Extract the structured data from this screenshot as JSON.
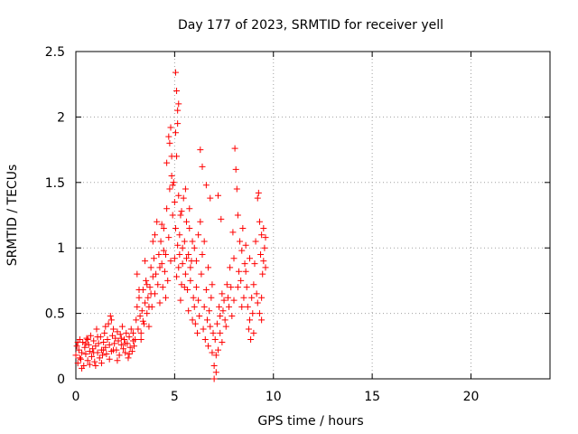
{
  "chart_data": {
    "type": "scatter",
    "title": "Day 177 of 2023, SRMTID for receiver yell",
    "xlabel": "GPS time / hours",
    "ylabel": "SRMTID / TECUs",
    "xlim": [
      0,
      24
    ],
    "ylim": [
      0,
      2.5
    ],
    "x_ticks": [
      0,
      5,
      10,
      15,
      20
    ],
    "x_tick_labels": [
      "0",
      "5",
      "10",
      "15",
      "20"
    ],
    "y_ticks": [
      0,
      0.5,
      1,
      1.5,
      2,
      2.5
    ],
    "y_tick_labels": [
      "0",
      "0.5",
      "1",
      "1.5",
      "2",
      "2.5"
    ],
    "grid": true,
    "marker": "+",
    "series": [
      {
        "name": "SRMTID",
        "color": "#ff0000",
        "points": [
          [
            0.0,
            0.18
          ],
          [
            0.05,
            0.25
          ],
          [
            0.1,
            0.12
          ],
          [
            0.15,
            0.22
          ],
          [
            0.2,
            0.3
          ],
          [
            0.25,
            0.15
          ],
          [
            0.3,
            0.2
          ],
          [
            0.35,
            0.28
          ],
          [
            0.4,
            0.1
          ],
          [
            0.45,
            0.24
          ],
          [
            0.5,
            0.19
          ],
          [
            0.55,
            0.31
          ],
          [
            0.6,
            0.14
          ],
          [
            0.65,
            0.26
          ],
          [
            0.7,
            0.21
          ],
          [
            0.75,
            0.33
          ],
          [
            0.8,
            0.17
          ],
          [
            0.85,
            0.23
          ],
          [
            0.9,
            0.29
          ],
          [
            0.95,
            0.13
          ],
          [
            1.0,
            0.25
          ],
          [
            1.05,
            0.38
          ],
          [
            1.1,
            0.2
          ],
          [
            1.15,
            0.27
          ],
          [
            1.2,
            0.16
          ],
          [
            1.25,
            0.32
          ],
          [
            1.3,
            0.22
          ],
          [
            1.35,
            0.18
          ],
          [
            1.4,
            0.28
          ],
          [
            1.45,
            0.35
          ],
          [
            1.5,
            0.24
          ],
          [
            1.55,
            0.19
          ],
          [
            1.6,
            0.3
          ],
          [
            1.65,
            0.42
          ],
          [
            1.7,
            0.26
          ],
          [
            1.75,
            0.48
          ],
          [
            1.8,
            0.21
          ],
          [
            1.85,
            0.33
          ],
          [
            1.9,
            0.38
          ],
          [
            1.95,
            0.27
          ],
          [
            2.0,
            0.31
          ],
          [
            2.05,
            0.22
          ],
          [
            2.1,
            0.36
          ],
          [
            2.15,
            0.29
          ],
          [
            2.2,
            0.18
          ],
          [
            2.25,
            0.34
          ],
          [
            2.3,
            0.26
          ],
          [
            2.35,
            0.4
          ],
          [
            2.4,
            0.23
          ],
          [
            2.45,
            0.3
          ],
          [
            2.5,
            0.2
          ],
          [
            2.55,
            0.35
          ],
          [
            2.6,
            0.27
          ],
          [
            2.65,
            0.16
          ],
          [
            2.7,
            0.32
          ],
          [
            2.75,
            0.24
          ],
          [
            2.8,
            0.38
          ],
          [
            2.85,
            0.21
          ],
          [
            2.9,
            0.29
          ],
          [
            2.95,
            0.25
          ],
          [
            0.1,
            0.28
          ],
          [
            0.3,
            0.08
          ],
          [
            0.5,
            0.27
          ],
          [
            0.7,
            0.11
          ],
          [
            0.9,
            0.2
          ],
          [
            1.1,
            0.32
          ],
          [
            1.3,
            0.12
          ],
          [
            1.5,
            0.4
          ],
          [
            1.7,
            0.15
          ],
          [
            1.9,
            0.22
          ],
          [
            2.1,
            0.14
          ],
          [
            2.3,
            0.31
          ],
          [
            2.5,
            0.27
          ],
          [
            2.7,
            0.19
          ],
          [
            2.9,
            0.35
          ],
          [
            0.2,
            0.16
          ],
          [
            0.6,
            0.3
          ],
          [
            1.0,
            0.1
          ],
          [
            1.4,
            0.22
          ],
          [
            1.8,
            0.45
          ],
          [
            3.0,
            0.3
          ],
          [
            3.05,
            0.45
          ],
          [
            3.1,
            0.55
          ],
          [
            3.15,
            0.38
          ],
          [
            3.2,
            0.62
          ],
          [
            3.25,
            0.48
          ],
          [
            3.3,
            0.35
          ],
          [
            3.35,
            0.52
          ],
          [
            3.4,
            0.68
          ],
          [
            3.45,
            0.42
          ],
          [
            3.5,
            0.58
          ],
          [
            3.55,
            0.75
          ],
          [
            3.6,
            0.5
          ],
          [
            3.65,
            0.62
          ],
          [
            3.7,
            0.4
          ],
          [
            3.75,
            0.7
          ],
          [
            3.8,
            0.85
          ],
          [
            3.85,
            0.55
          ],
          [
            3.9,
            0.78
          ],
          [
            3.95,
            0.92
          ],
          [
            3.1,
            0.8
          ],
          [
            3.3,
            0.3
          ],
          [
            3.5,
            0.9
          ],
          [
            3.7,
            0.55
          ],
          [
            3.9,
            1.05
          ],
          [
            3.2,
            0.68
          ],
          [
            3.4,
            0.44
          ],
          [
            3.6,
            0.72
          ],
          [
            3.8,
            0.65
          ],
          [
            4.0,
            1.1
          ],
          [
            4.0,
            0.65
          ],
          [
            4.05,
            0.8
          ],
          [
            4.1,
            1.2
          ],
          [
            4.15,
            0.72
          ],
          [
            4.2,
            0.95
          ],
          [
            4.25,
            0.58
          ],
          [
            4.3,
            1.05
          ],
          [
            4.35,
            0.88
          ],
          [
            4.4,
            0.7
          ],
          [
            4.45,
            1.15
          ],
          [
            4.5,
            0.82
          ],
          [
            4.55,
            0.95
          ],
          [
            4.6,
            1.3
          ],
          [
            4.65,
            0.75
          ],
          [
            4.7,
            1.08
          ],
          [
            4.75,
            1.45
          ],
          [
            4.8,
            0.9
          ],
          [
            4.85,
            1.7
          ],
          [
            4.9,
            1.25
          ],
          [
            4.95,
            1.5
          ],
          [
            4.6,
            1.65
          ],
          [
            4.7,
            1.85
          ],
          [
            4.8,
            1.92
          ],
          [
            4.9,
            1.48
          ],
          [
            4.75,
            1.8
          ],
          [
            4.85,
            1.55
          ],
          [
            4.55,
            0.62
          ],
          [
            4.45,
            0.98
          ],
          [
            4.35,
            1.18
          ],
          [
            4.25,
            0.85
          ],
          [
            5.0,
            1.35
          ],
          [
            5.05,
            2.34
          ],
          [
            5.1,
            2.2
          ],
          [
            5.15,
            1.95
          ],
          [
            5.2,
            2.1
          ],
          [
            5.1,
            1.7
          ],
          [
            5.15,
            2.05
          ],
          [
            5.05,
            1.88
          ],
          [
            5.2,
            1.4
          ],
          [
            5.25,
            1.1
          ],
          [
            5.0,
            0.92
          ],
          [
            5.05,
            1.15
          ],
          [
            5.1,
            0.78
          ],
          [
            5.15,
            1.02
          ],
          [
            5.2,
            0.85
          ],
          [
            5.25,
            0.95
          ],
          [
            5.3,
            1.25
          ],
          [
            5.35,
            0.72
          ],
          [
            5.4,
            0.88
          ],
          [
            5.45,
            1.38
          ],
          [
            5.5,
            1.05
          ],
          [
            5.55,
            0.8
          ],
          [
            5.6,
            1.2
          ],
          [
            5.65,
            0.68
          ],
          [
            5.7,
            0.95
          ],
          [
            5.75,
            1.15
          ],
          [
            5.8,
            0.75
          ],
          [
            5.85,
            0.9
          ],
          [
            5.9,
            1.05
          ],
          [
            5.95,
            0.62
          ],
          [
            5.3,
            0.6
          ],
          [
            5.5,
            0.7
          ],
          [
            5.7,
            0.52
          ],
          [
            5.9,
            0.45
          ],
          [
            5.4,
            1.0
          ],
          [
            5.6,
            0.92
          ],
          [
            5.8,
            0.85
          ],
          [
            5.35,
            1.28
          ],
          [
            5.55,
            1.45
          ],
          [
            5.75,
            1.3
          ],
          [
            6.0,
            0.55
          ],
          [
            6.05,
            0.42
          ],
          [
            6.1,
            0.7
          ],
          [
            6.15,
            0.35
          ],
          [
            6.2,
            0.6
          ],
          [
            6.25,
            0.48
          ],
          [
            6.3,
            1.75
          ],
          [
            6.35,
            0.8
          ],
          [
            6.4,
            1.62
          ],
          [
            6.45,
            0.38
          ],
          [
            6.5,
            0.55
          ],
          [
            6.55,
            0.3
          ],
          [
            6.6,
            0.68
          ],
          [
            6.65,
            0.45
          ],
          [
            6.7,
            0.25
          ],
          [
            6.75,
            0.52
          ],
          [
            6.8,
            0.4
          ],
          [
            6.85,
            0.62
          ],
          [
            6.9,
            0.2
          ],
          [
            6.95,
            0.35
          ],
          [
            6.0,
            1.0
          ],
          [
            6.1,
            0.9
          ],
          [
            6.2,
            1.1
          ],
          [
            6.3,
            1.2
          ],
          [
            6.4,
            0.95
          ],
          [
            6.5,
            1.05
          ],
          [
            6.6,
            1.48
          ],
          [
            6.7,
            0.85
          ],
          [
            6.8,
            1.38
          ],
          [
            6.9,
            0.72
          ],
          [
            7.0,
            0.0
          ],
          [
            7.05,
            0.3
          ],
          [
            7.1,
            0.18
          ],
          [
            7.15,
            0.42
          ],
          [
            7.2,
            1.4
          ],
          [
            7.25,
            0.55
          ],
          [
            7.3,
            0.48
          ],
          [
            7.35,
            1.22
          ],
          [
            7.4,
            0.65
          ],
          [
            7.45,
            0.52
          ],
          [
            7.0,
            0.1
          ],
          [
            7.1,
            0.05
          ],
          [
            7.2,
            0.22
          ],
          [
            7.3,
            0.35
          ],
          [
            7.4,
            0.28
          ],
          [
            7.5,
            0.6
          ],
          [
            7.55,
            0.45
          ],
          [
            7.6,
            0.4
          ],
          [
            7.65,
            0.72
          ],
          [
            7.7,
            0.62
          ],
          [
            7.75,
            0.55
          ],
          [
            7.8,
            0.85
          ],
          [
            7.85,
            0.7
          ],
          [
            7.9,
            0.48
          ],
          [
            7.95,
            1.12
          ],
          [
            8.0,
            0.92
          ],
          [
            8.05,
            1.76
          ],
          [
            8.1,
            1.6
          ],
          [
            8.15,
            1.45
          ],
          [
            8.2,
            1.25
          ],
          [
            8.25,
            0.82
          ],
          [
            8.3,
            1.05
          ],
          [
            8.35,
            0.75
          ],
          [
            8.4,
            0.98
          ],
          [
            8.45,
            1.15
          ],
          [
            8.5,
            0.62
          ],
          [
            8.55,
            0.88
          ],
          [
            8.6,
            1.02
          ],
          [
            8.65,
            0.7
          ],
          [
            8.7,
            0.55
          ],
          [
            8.75,
            0.38
          ],
          [
            8.8,
            0.45
          ],
          [
            8.85,
            0.3
          ],
          [
            8.9,
            0.62
          ],
          [
            8.95,
            0.5
          ],
          [
            9.0,
            0.72
          ],
          [
            9.05,
            0.88
          ],
          [
            9.1,
            1.05
          ],
          [
            9.15,
            0.65
          ],
          [
            9.2,
            1.38
          ],
          [
            9.25,
            1.42
          ],
          [
            9.3,
            1.2
          ],
          [
            9.35,
            0.95
          ],
          [
            9.4,
            1.1
          ],
          [
            9.45,
            0.8
          ],
          [
            9.5,
            1.15
          ],
          [
            9.55,
            1.0
          ],
          [
            9.6,
            0.85
          ],
          [
            9.3,
            0.5
          ],
          [
            9.4,
            0.62
          ],
          [
            8.0,
            0.6
          ],
          [
            8.2,
            0.7
          ],
          [
            8.4,
            0.55
          ],
          [
            8.6,
            0.82
          ],
          [
            8.8,
            0.92
          ],
          [
            9.0,
            0.35
          ],
          [
            9.2,
            0.58
          ],
          [
            9.4,
            0.45
          ],
          [
            9.5,
            0.9
          ],
          [
            9.6,
            1.08
          ]
        ]
      }
    ]
  }
}
